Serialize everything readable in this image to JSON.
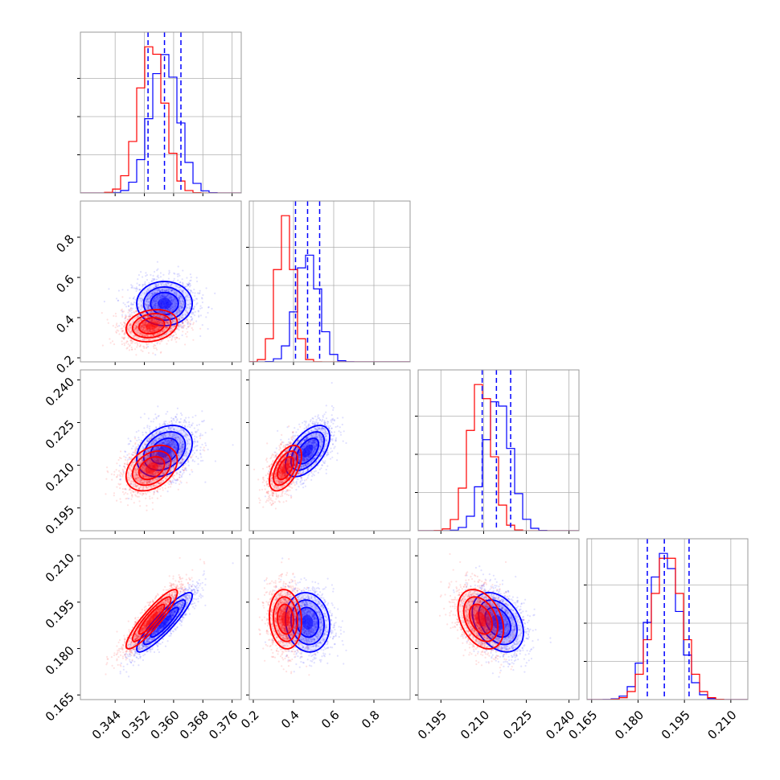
{
  "chart_data": {
    "type": "corner",
    "colors": {
      "series_a": "#0000ff",
      "series_b": "#ff0000"
    },
    "grid": true,
    "parameters": [
      {
        "range": [
          0.3345,
          0.3785
        ],
        "ticks": [
          0.344,
          0.352,
          0.36,
          0.368,
          0.376
        ],
        "tick_labels": [
          "0.344",
          "0.352",
          "0.360",
          "0.368",
          "0.376"
        ]
      },
      {
        "range": [
          0.18,
          0.98
        ],
        "ticks": [
          0.2,
          0.4,
          0.6,
          0.8
        ],
        "tick_labels": [
          "0.2",
          "0.4",
          "0.6",
          "0.8"
        ]
      },
      {
        "range": [
          0.187,
          0.2435
        ],
        "ticks": [
          0.195,
          0.21,
          0.225,
          0.24
        ],
        "tick_labels": [
          "0.195",
          "0.210",
          "0.225",
          "0.240"
        ]
      },
      {
        "range": [
          0.1635,
          0.2155
        ],
        "ticks": [
          0.165,
          0.18,
          0.195,
          0.21
        ],
        "tick_labels": [
          "0.165",
          "0.180",
          "0.195",
          "0.210"
        ]
      }
    ],
    "series": [
      {
        "color": "#0000ff",
        "mean": [
          0.3575,
          0.47,
          0.215,
          0.1885
        ],
        "std": [
          0.0038,
          0.055,
          0.0045,
          0.0048
        ],
        "quantiles": [
          [
            0.353,
            0.3575,
            0.362
          ],
          [
            0.41,
            0.47,
            0.53
          ],
          [
            0.2095,
            0.2145,
            0.2195
          ],
          [
            0.183,
            0.1885,
            0.1965
          ]
        ],
        "corr": {
          "0-1": 0.0,
          "0-2": 0.3,
          "0-3": 0.9,
          "1-2": 0.55,
          "1-3": -0.1,
          "2-3": -0.35
        }
      },
      {
        "color": "#ff0000",
        "mean": [
          0.354,
          0.36,
          0.209,
          0.1895
        ],
        "std": [
          0.0035,
          0.04,
          0.004,
          0.0048
        ],
        "corr": {
          "0-1": 0.2,
          "0-2": 0.35,
          "0-3": 0.9,
          "1-2": 0.55,
          "1-3": -0.1,
          "2-3": -0.35
        }
      }
    ]
  }
}
